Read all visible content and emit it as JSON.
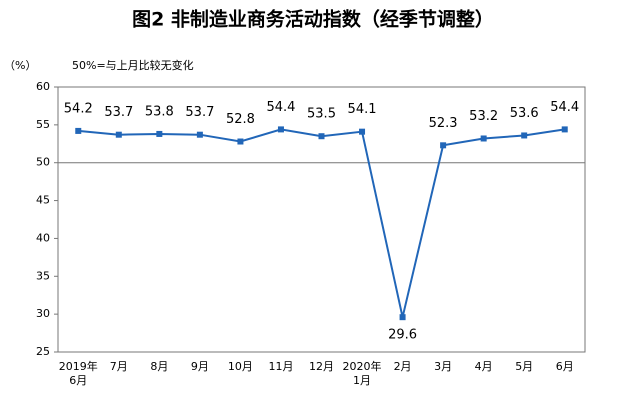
{
  "chart_data": {
    "type": "line",
    "title": "图2  非制造业商务活动指数（经季节调整）",
    "y_unit": "（%）",
    "annotation": "50%=与上月比较无变化",
    "categories": [
      "2019年\n6月",
      "7月",
      "8月",
      "9月",
      "10月",
      "11月",
      "12月",
      "2020年\n1月",
      "2月",
      "3月",
      "4月",
      "5月",
      "6月"
    ],
    "values": [
      54.2,
      53.7,
      53.8,
      53.7,
      52.8,
      54.4,
      53.5,
      54.1,
      29.6,
      52.3,
      53.2,
      53.6,
      54.4
    ],
    "color": "#2166b8",
    "ylim": [
      25,
      60
    ],
    "yticks": [
      25,
      30,
      35,
      40,
      45,
      50,
      55,
      60
    ],
    "reference_line": 50
  }
}
